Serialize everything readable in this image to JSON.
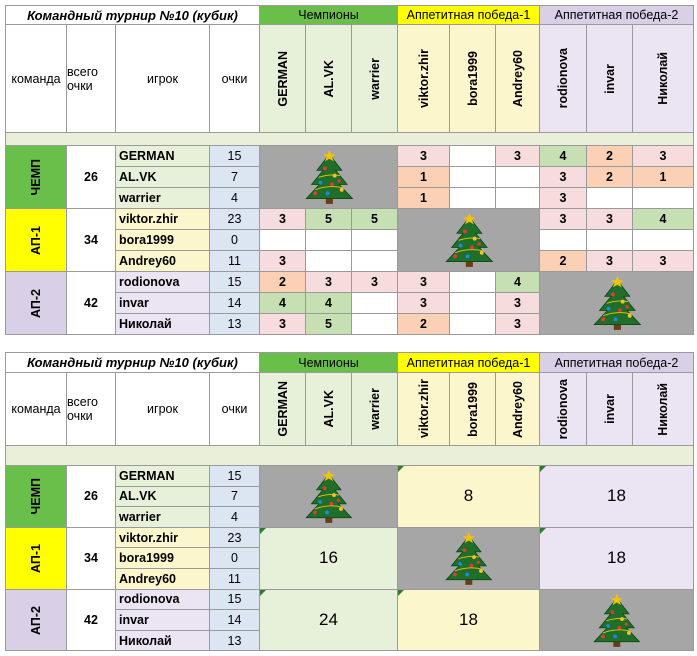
{
  "colors": {
    "champ": "#6abf4a",
    "champ_hdr": "#e7f0d9",
    "ap1": "#ffff00",
    "ap1_hdr": "#fbf6cc",
    "ap2": "#d9cfe6",
    "ap2_hdr": "#ebe4f2",
    "score_row": "#dce6f2",
    "band": "#e9efd9",
    "cell_pink": "#f6dcdc",
    "cell_green": "#c6e0b4",
    "cell_orange": "#fbd0b5",
    "tree_bg": "#a6a6a6"
  },
  "tables": [
    {
      "title": "Командный турнир №10 (кубик)",
      "group_headers": [
        "Чемпионы",
        "Аппетитная победа-1",
        "Аппетитная победа-2"
      ],
      "col_headers": [
        "команда",
        "всего очки",
        "игрок",
        "очки"
      ],
      "player_cols": [
        "GERMAN",
        "AL.VK",
        "warrier",
        "viktor.zhir",
        "bora1999",
        "Andrey60",
        "rodionova",
        "invar",
        "Николай"
      ],
      "teams": [
        {
          "name": "ЧЕМП",
          "total": "26",
          "players": [
            {
              "name": "GERMAN",
              "points": "15",
              "cells": [
                "",
                "",
                "",
                "3",
                "",
                "3",
                "4",
                "2",
                "3"
              ]
            },
            {
              "name": "AL.VK",
              "points": "7",
              "cells": [
                "",
                "",
                "",
                "1",
                "",
                "",
                "3",
                "2",
                "1"
              ]
            },
            {
              "name": "warrier",
              "points": "4",
              "cells": [
                "",
                "",
                "",
                "1",
                "",
                "",
                "3",
                "",
                ""
              ]
            }
          ]
        },
        {
          "name": "АП-1",
          "total": "34",
          "players": [
            {
              "name": "viktor.zhir",
              "points": "23",
              "cells": [
                "3",
                "5",
                "5",
                "",
                "",
                "",
                "3",
                "3",
                "4"
              ]
            },
            {
              "name": "bora1999",
              "points": "0",
              "cells": [
                "",
                "",
                "",
                "",
                "",
                "",
                "",
                "",
                ""
              ]
            },
            {
              "name": "Andrey60",
              "points": "11",
              "cells": [
                "3",
                "",
                "",
                "",
                "",
                "",
                "2",
                "3",
                "3"
              ]
            }
          ]
        },
        {
          "name": "АП-2",
          "total": "42",
          "players": [
            {
              "name": "rodionova",
              "points": "15",
              "cells": [
                "2",
                "3",
                "3",
                "3",
                "",
                "4",
                "",
                "",
                ""
              ]
            },
            {
              "name": "invar",
              "points": "14",
              "cells": [
                "4",
                "4",
                "",
                "3",
                "",
                "3",
                "",
                "",
                ""
              ]
            },
            {
              "name": "Николай",
              "points": "13",
              "cells": [
                "3",
                "5",
                "",
                "2",
                "",
                "3",
                "",
                "",
                ""
              ]
            }
          ]
        }
      ]
    },
    {
      "title": "Командный турнир №10 (кубик)",
      "group_headers": [
        "Чемпионы",
        "Аппетитная победа-1",
        "Аппетитная победа-2"
      ],
      "col_headers": [
        "команда",
        "всего очки",
        "игрок",
        "очки"
      ],
      "player_cols": [
        "GERMAN",
        "AL.VK",
        "warrier",
        "viktor.zhir",
        "bora1999",
        "Andrey60",
        "rodionova",
        "invar",
        "Николай"
      ],
      "teams": [
        {
          "name": "ЧЕМП",
          "total": "26",
          "players": [
            {
              "name": "GERMAN",
              "points": "15"
            },
            {
              "name": "AL.VK",
              "points": "7"
            },
            {
              "name": "warrier",
              "points": "4"
            }
          ],
          "blocks": [
            "",
            "8",
            "18"
          ]
        },
        {
          "name": "АП-1",
          "total": "34",
          "players": [
            {
              "name": "viktor.zhir",
              "points": "23"
            },
            {
              "name": "bora1999",
              "points": "0"
            },
            {
              "name": "Andrey60",
              "points": "11"
            }
          ],
          "blocks": [
            "16",
            "",
            "18"
          ]
        },
        {
          "name": "АП-2",
          "total": "42",
          "players": [
            {
              "name": "rodionova",
              "points": "15"
            },
            {
              "name": "invar",
              "points": "14"
            },
            {
              "name": "Николай",
              "points": "13"
            }
          ],
          "blocks": [
            "24",
            "18",
            ""
          ]
        }
      ]
    }
  ]
}
